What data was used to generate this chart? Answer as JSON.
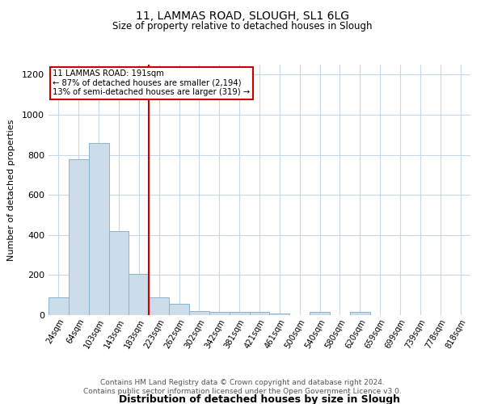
{
  "title1": "11, LAMMAS ROAD, SLOUGH, SL1 6LG",
  "title2": "Size of property relative to detached houses in Slough",
  "xlabel": "Distribution of detached houses by size in Slough",
  "ylabel": "Number of detached properties",
  "categories": [
    "24sqm",
    "64sqm",
    "103sqm",
    "143sqm",
    "183sqm",
    "223sqm",
    "262sqm",
    "302sqm",
    "342sqm",
    "381sqm",
    "421sqm",
    "461sqm",
    "500sqm",
    "540sqm",
    "580sqm",
    "620sqm",
    "659sqm",
    "699sqm",
    "739sqm",
    "778sqm",
    "818sqm"
  ],
  "values": [
    90,
    780,
    860,
    420,
    205,
    90,
    55,
    20,
    15,
    15,
    15,
    10,
    0,
    15,
    0,
    15,
    0,
    0,
    0,
    0,
    0
  ],
  "bar_color": "#ccdce9",
  "bar_edge_color": "#8ab4ce",
  "red_line_x": 4.5,
  "annotation_line1": "11 LAMMAS ROAD: 191sqm",
  "annotation_line2": "← 87% of detached houses are smaller (2,194)",
  "annotation_line3": "13% of semi-detached houses are larger (319) →",
  "annotation_box_color": "#ffffff",
  "annotation_border_color": "#cc0000",
  "red_line_color": "#cc0000",
  "ylim": [
    0,
    1250
  ],
  "yticks": [
    0,
    200,
    400,
    600,
    800,
    1000,
    1200
  ],
  "footnote1": "Contains HM Land Registry data © Crown copyright and database right 2024.",
  "footnote2": "Contains public sector information licensed under the Open Government Licence v3.0.",
  "background_color": "#ffffff",
  "grid_color": "#c8d8e8"
}
